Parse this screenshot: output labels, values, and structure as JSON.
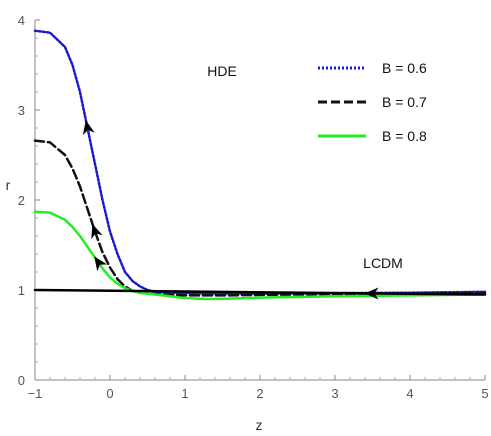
{
  "chart_data": {
    "type": "line",
    "title": "",
    "xlabel": "z",
    "ylabel": "r",
    "xlim": [
      -1,
      5
    ],
    "ylim": [
      0,
      4
    ],
    "xticks": [
      -1,
      0,
      1,
      2,
      3,
      4,
      5
    ],
    "yticks": [
      0,
      1,
      2,
      3,
      4
    ],
    "grid": false,
    "legend_position": "top-right",
    "annotations": [
      "HDE",
      "LCDM"
    ],
    "series": [
      {
        "name": "B = 0.6",
        "color": "#1a1acc",
        "style": "dotted",
        "x": [
          -1,
          -0.8,
          -0.6,
          -0.5,
          -0.4,
          -0.3,
          -0.2,
          -0.1,
          0,
          0.1,
          0.2,
          0.3,
          0.4,
          0.5,
          0.6,
          0.8,
          1,
          1.5,
          2,
          3,
          4,
          5
        ],
        "y": [
          3.88,
          3.86,
          3.7,
          3.5,
          3.2,
          2.8,
          2.4,
          2.0,
          1.65,
          1.4,
          1.2,
          1.1,
          1.04,
          1.0,
          0.98,
          0.97,
          0.965,
          0.96,
          0.96,
          0.965,
          0.97,
          0.98
        ]
      },
      {
        "name": "B = 0.7",
        "color": "#111111",
        "style": "dashed",
        "x": [
          -1,
          -0.8,
          -0.6,
          -0.5,
          -0.4,
          -0.3,
          -0.2,
          -0.1,
          0,
          0.1,
          0.2,
          0.3,
          0.4,
          0.5,
          0.6,
          0.8,
          1,
          1.5,
          2,
          3,
          4,
          5
        ],
        "y": [
          2.66,
          2.64,
          2.5,
          2.35,
          2.15,
          1.9,
          1.65,
          1.42,
          1.25,
          1.12,
          1.04,
          0.99,
          0.97,
          0.96,
          0.955,
          0.945,
          0.94,
          0.94,
          0.945,
          0.955,
          0.96,
          0.965
        ]
      },
      {
        "name": "B = 0.8",
        "color": "#22ee22",
        "style": "solid",
        "x": [
          -1,
          -0.8,
          -0.6,
          -0.5,
          -0.4,
          -0.3,
          -0.2,
          -0.1,
          0,
          0.1,
          0.2,
          0.3,
          0.4,
          0.5,
          0.6,
          0.8,
          1,
          1.3,
          1.6,
          2,
          3,
          4,
          5
        ],
        "y": [
          1.87,
          1.86,
          1.78,
          1.7,
          1.6,
          1.48,
          1.36,
          1.24,
          1.14,
          1.07,
          1.02,
          0.99,
          0.97,
          0.96,
          0.95,
          0.93,
          0.91,
          0.9,
          0.905,
          0.915,
          0.93,
          0.94,
          0.95
        ]
      },
      {
        "name": "LCDM",
        "color": "#000000",
        "style": "solid",
        "x": [
          -1,
          5
        ],
        "y": [
          1.0,
          0.95
        ]
      }
    ]
  }
}
